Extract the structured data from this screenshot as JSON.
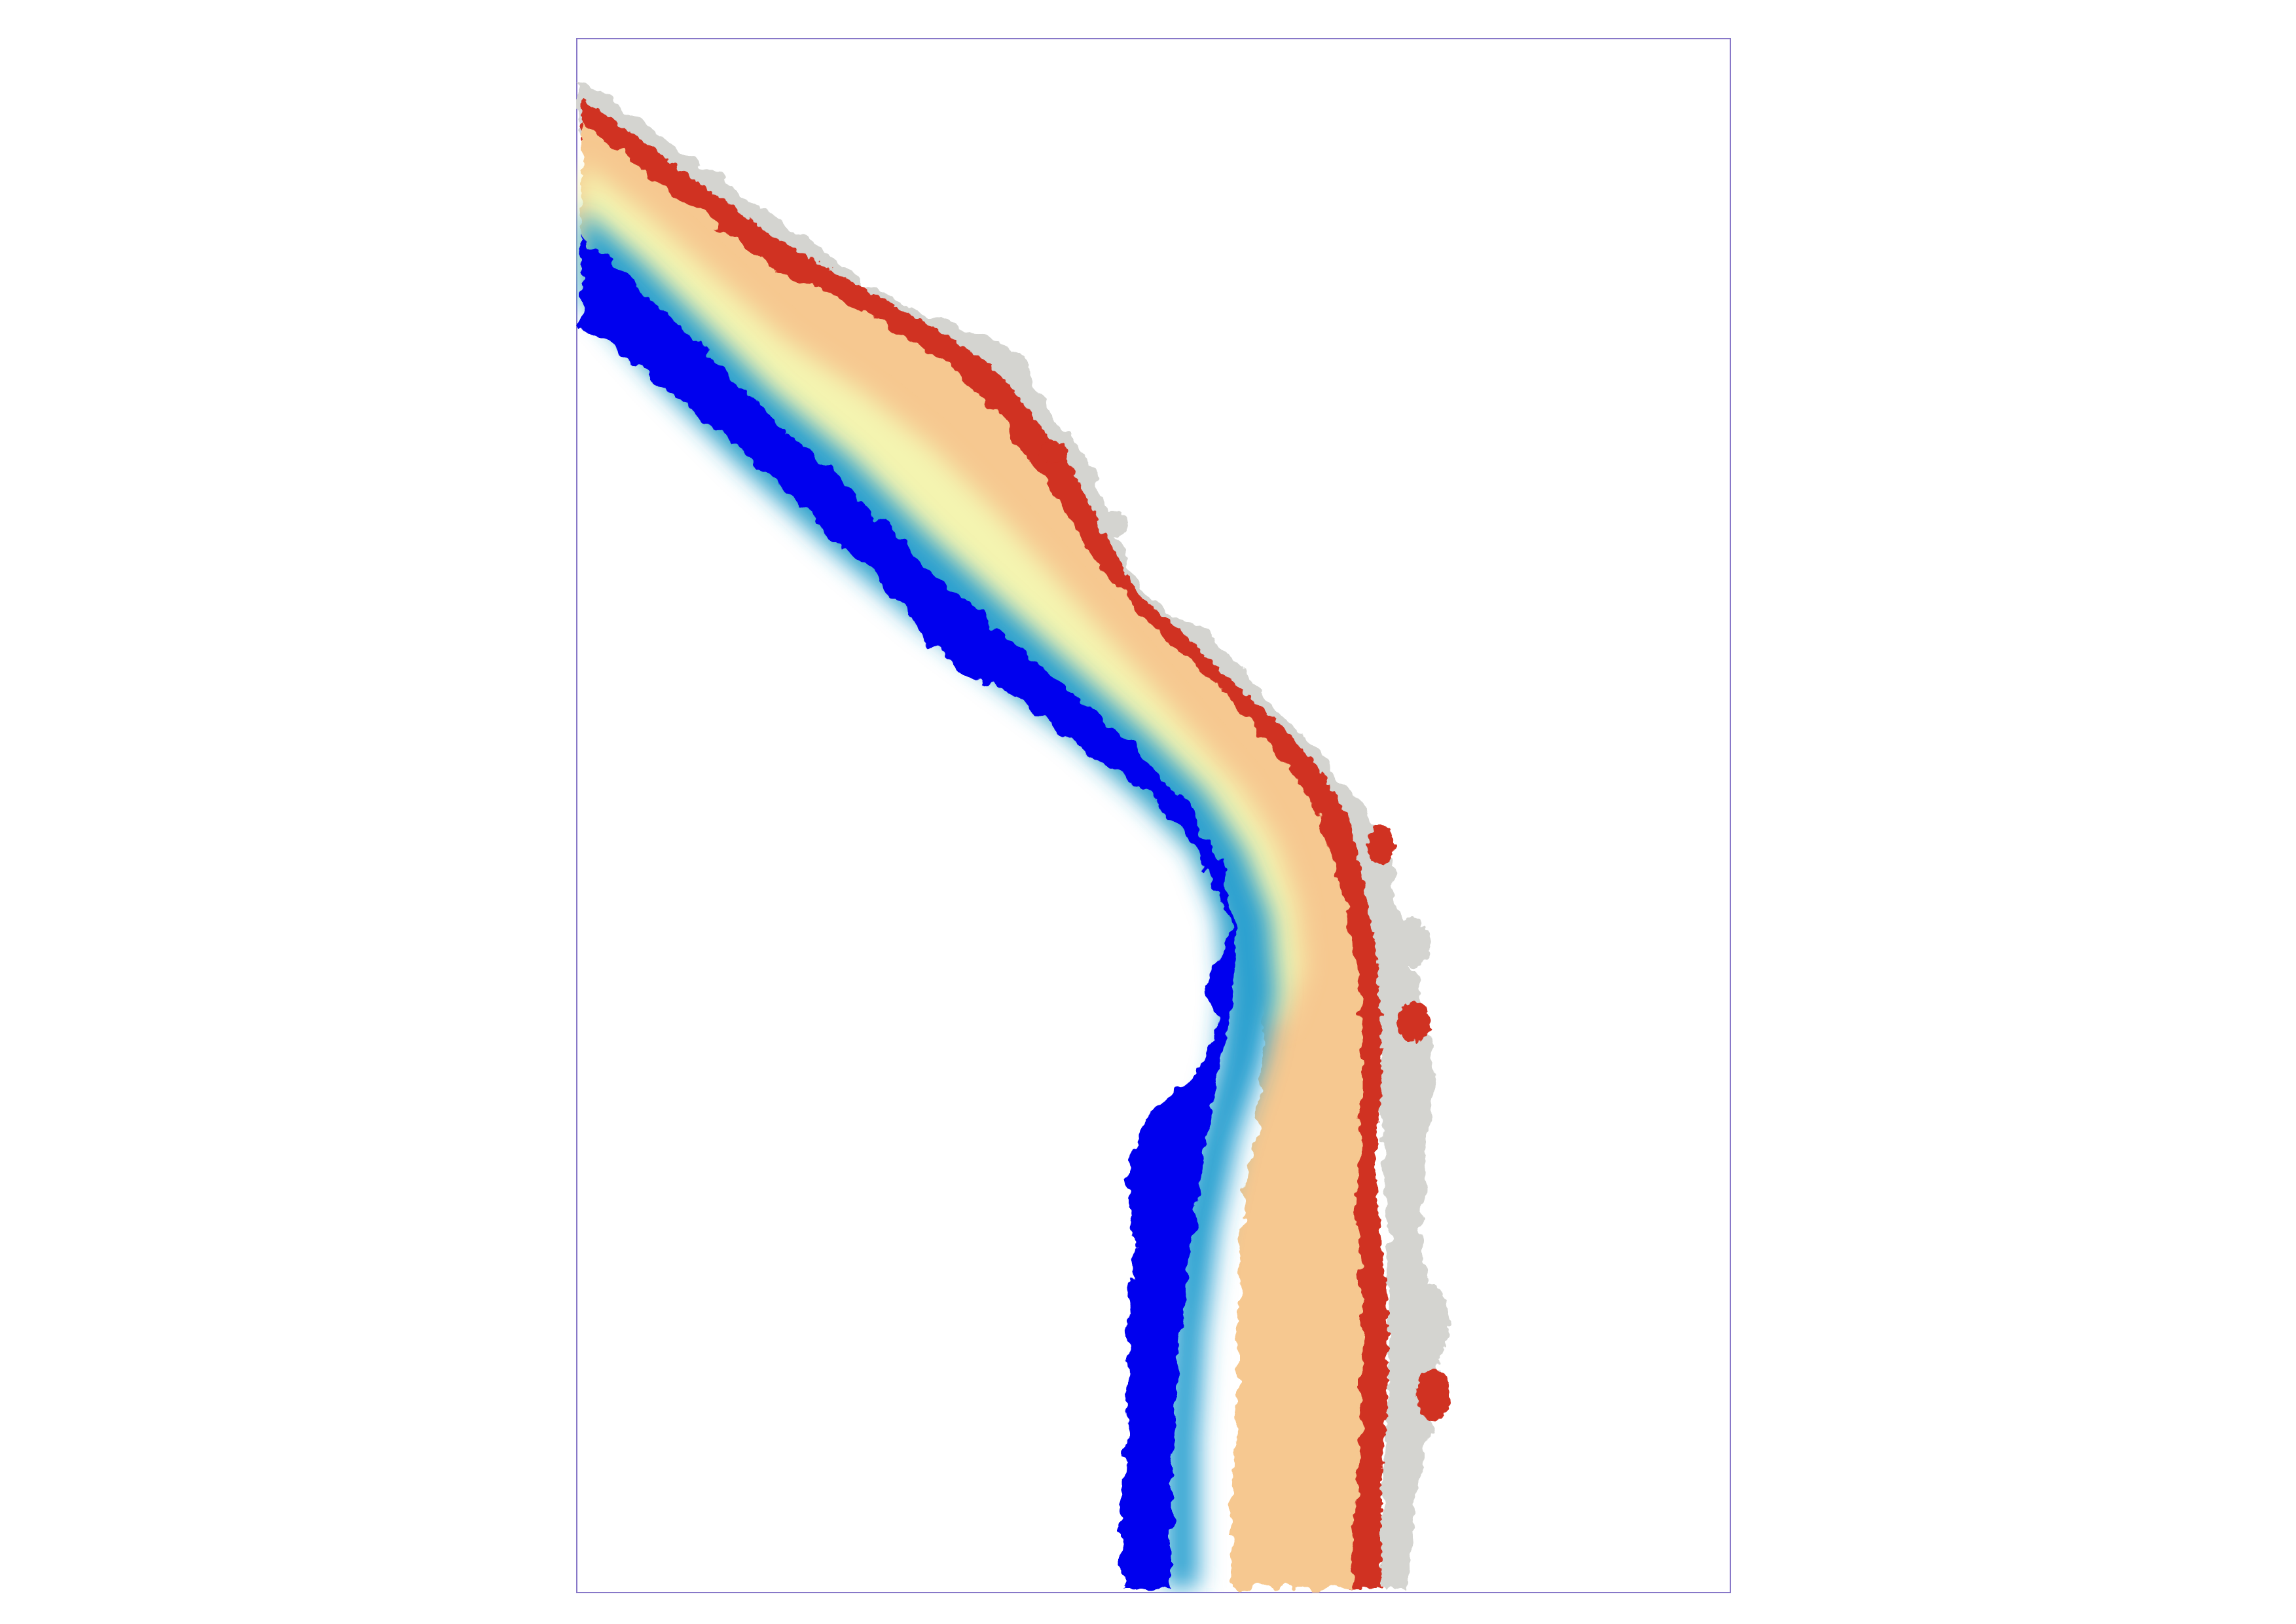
{
  "map": {
    "frame_color": "#8878c8",
    "background_color": "#ffffff",
    "land_color": "#d4d4d0",
    "ramp_colors": {
      "deep": "#0000ee",
      "deep_mid": "#0050e0",
      "mid": "#2aa0d0",
      "shallow_mid": "#b0dcb0",
      "pale": "#f4f4b0",
      "warm": "#f6c890",
      "orange": "#f0a070",
      "edge": "#d03020"
    },
    "legend_visible": false,
    "labels_visible": false
  }
}
